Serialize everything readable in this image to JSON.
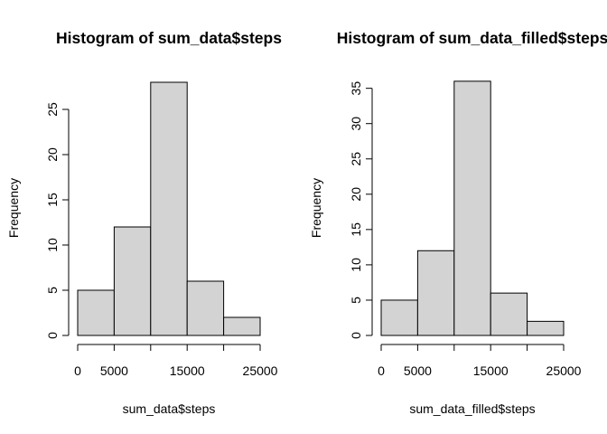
{
  "colors": {
    "bar_fill": "#d3d3d3",
    "bar_stroke": "#000000",
    "background": "#ffffff"
  },
  "chart_data": [
    {
      "type": "bar",
      "title": "Histogram of sum_data$steps",
      "xlabel": "sum_data$steps",
      "ylabel": "Frequency",
      "bins": [
        [
          0,
          5000
        ],
        [
          5000,
          10000
        ],
        [
          10000,
          15000
        ],
        [
          15000,
          20000
        ],
        [
          20000,
          25000
        ]
      ],
      "values": [
        5,
        12,
        28,
        6,
        2
      ],
      "xlim": [
        0,
        25000
      ],
      "ylim": [
        0,
        28
      ],
      "x_ticks": [
        0,
        5000,
        10000,
        15000,
        20000,
        25000
      ],
      "x_tick_labels": [
        "0",
        "5000",
        "",
        "15000",
        "",
        "25000"
      ],
      "y_ticks": [
        0,
        5,
        10,
        15,
        20,
        25
      ],
      "y_tick_labels": [
        "0",
        "5",
        "10",
        "15",
        "20",
        "25"
      ],
      "grid": false,
      "legend": "none"
    },
    {
      "type": "bar",
      "title": "Histogram of sum_data_filled$steps",
      "xlabel": "sum_data_filled$steps",
      "ylabel": "Frequency",
      "bins": [
        [
          0,
          5000
        ],
        [
          5000,
          10000
        ],
        [
          10000,
          15000
        ],
        [
          15000,
          20000
        ],
        [
          20000,
          25000
        ]
      ],
      "values": [
        5,
        12,
        36,
        6,
        2
      ],
      "xlim": [
        0,
        25000
      ],
      "ylim": [
        0,
        36
      ],
      "x_ticks": [
        0,
        5000,
        10000,
        15000,
        20000,
        25000
      ],
      "x_tick_labels": [
        "0",
        "5000",
        "",
        "15000",
        "",
        "25000"
      ],
      "y_ticks": [
        0,
        5,
        10,
        15,
        20,
        25,
        30,
        35
      ],
      "y_tick_labels": [
        "0",
        "5",
        "10",
        "15",
        "20",
        "25",
        "30",
        "35"
      ],
      "grid": false,
      "legend": "none"
    }
  ]
}
